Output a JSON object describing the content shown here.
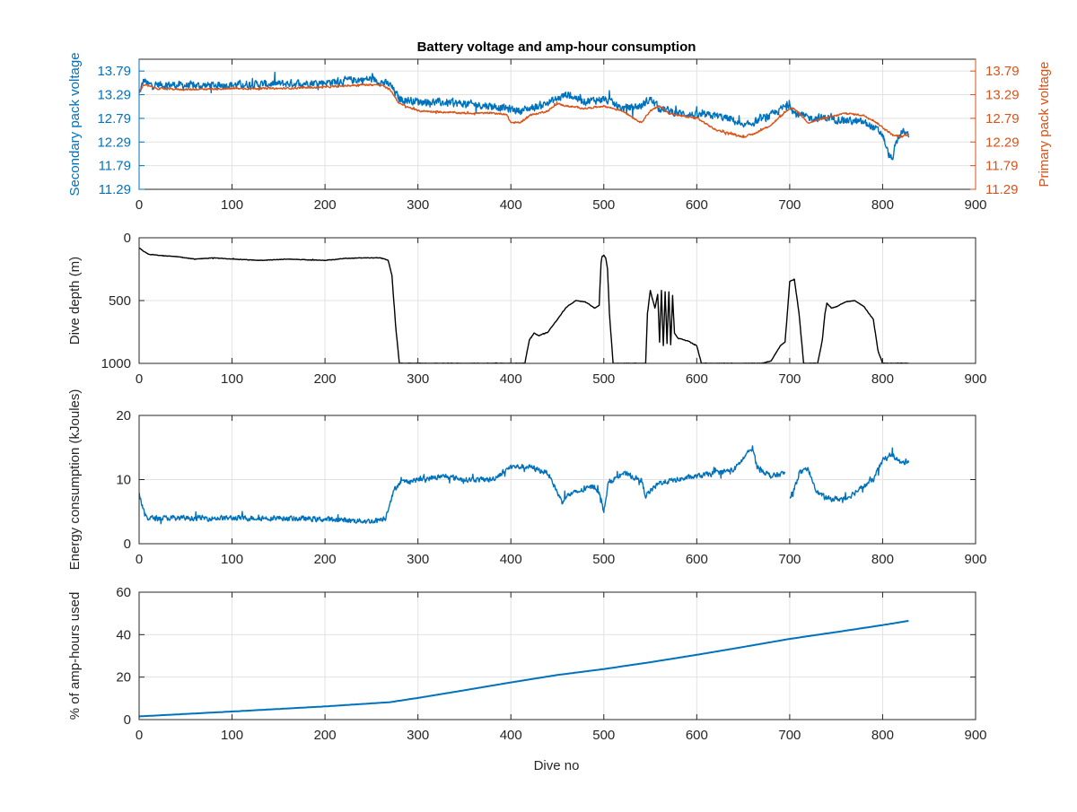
{
  "figure": {
    "title": "Battery voltage and amp-hour consumption",
    "xlabel": "Dive no"
  },
  "colors": {
    "blue": "#0072BD",
    "orange": "#D95319",
    "black": "#000000",
    "grid": "#e2e2e2",
    "axis": "#262626"
  },
  "chart_data": [
    {
      "type": "line",
      "title": "Battery voltage and amp-hour consumption",
      "xlabel": "",
      "ylabel_left": "Secondary pack voltage",
      "ylabel_right": "Primary pack voltage",
      "xlim": [
        0,
        900
      ],
      "x_ticks": [
        0,
        100,
        200,
        300,
        400,
        500,
        600,
        700,
        800,
        900
      ],
      "ylim": [
        11.29,
        14.04
      ],
      "y_ticks": [
        11.29,
        11.79,
        12.29,
        12.79,
        13.29,
        13.79
      ],
      "grid": true,
      "series": [
        {
          "name": "Secondary pack voltage",
          "axis": "left",
          "color": "#0072BD",
          "noise": 0.22,
          "x": [
            0,
            5,
            10,
            30,
            60,
            100,
            150,
            200,
            230,
            250,
            270,
            280,
            300,
            350,
            380,
            395,
            410,
            430,
            450,
            460,
            480,
            500,
            520,
            540,
            550,
            560,
            580,
            600,
            620,
            640,
            650,
            660,
            680,
            700,
            705,
            720,
            740,
            760,
            780,
            790,
            800,
            805,
            810,
            815,
            820,
            828
          ],
          "y": [
            13.3,
            13.6,
            13.5,
            13.5,
            13.48,
            13.5,
            13.52,
            13.55,
            13.6,
            13.62,
            13.5,
            13.2,
            13.15,
            13.1,
            13.05,
            13.0,
            12.95,
            13.05,
            13.2,
            13.3,
            13.15,
            13.2,
            13.0,
            13.05,
            13.2,
            13.0,
            12.9,
            12.85,
            12.85,
            12.75,
            12.6,
            12.7,
            12.85,
            13.1,
            12.9,
            12.8,
            12.8,
            12.75,
            12.7,
            12.6,
            12.45,
            12.1,
            11.9,
            12.3,
            12.5,
            12.45
          ]
        },
        {
          "name": "Primary pack voltage",
          "axis": "left",
          "color": "#D95319",
          "noise": 0.05,
          "x": [
            0,
            5,
            20,
            50,
            100,
            150,
            200,
            240,
            260,
            270,
            280,
            300,
            350,
            380,
            395,
            400,
            410,
            420,
            440,
            450,
            460,
            480,
            500,
            520,
            540,
            550,
            560,
            570,
            580,
            600,
            620,
            630,
            650,
            660,
            680,
            700,
            705,
            720,
            740,
            760,
            780,
            790,
            800,
            810,
            820,
            828
          ],
          "y": [
            13.35,
            13.5,
            13.42,
            13.4,
            13.42,
            13.42,
            13.45,
            13.5,
            13.5,
            13.4,
            13.1,
            12.95,
            12.9,
            12.9,
            12.88,
            12.7,
            12.7,
            12.85,
            12.95,
            13.1,
            13.05,
            13.0,
            13.05,
            12.95,
            12.7,
            12.95,
            13.05,
            12.9,
            12.85,
            12.8,
            12.55,
            12.5,
            12.4,
            12.45,
            12.65,
            13.0,
            13.0,
            12.7,
            12.8,
            12.9,
            12.85,
            12.75,
            12.6,
            12.45,
            12.4,
            12.45
          ]
        }
      ]
    },
    {
      "type": "line",
      "ylabel": "Dive depth (m)",
      "xlim": [
        0,
        900
      ],
      "x_ticks": [
        0,
        100,
        200,
        300,
        400,
        500,
        600,
        700,
        800,
        900
      ],
      "ylim": [
        0,
        1000
      ],
      "y_reversed": true,
      "y_ticks": [
        0,
        500,
        1000
      ],
      "grid": true,
      "series": [
        {
          "name": "",
          "color": "#000000",
          "noise": 6,
          "x": [
            0,
            2,
            5,
            10,
            20,
            40,
            60,
            80,
            100,
            130,
            160,
            200,
            220,
            240,
            260,
            268,
            272,
            276,
            280,
            300,
            350,
            400,
            415,
            420,
            425,
            430,
            440,
            450,
            460,
            470,
            480,
            490,
            495,
            497,
            498,
            500,
            502,
            504,
            506,
            510,
            515,
            520,
            540,
            545,
            547,
            550,
            555,
            558,
            560,
            562,
            564,
            566,
            568,
            570,
            572,
            574,
            576,
            580,
            590,
            600,
            605,
            608,
            612,
            650,
            670,
            680,
            690,
            695,
            698,
            700,
            702,
            705,
            710,
            715,
            720,
            730,
            735,
            738,
            740,
            745,
            750,
            760,
            770,
            780,
            790,
            795,
            800,
            810,
            828
          ],
          "y": [
            80,
            90,
            110,
            130,
            140,
            150,
            170,
            160,
            170,
            180,
            170,
            180,
            165,
            160,
            160,
            180,
            300,
            700,
            1000,
            1000,
            1000,
            1000,
            1000,
            810,
            760,
            780,
            750,
            650,
            550,
            500,
            510,
            560,
            540,
            200,
            150,
            140,
            160,
            250,
            600,
            1000,
            1000,
            1000,
            1000,
            1000,
            600,
            420,
            560,
            450,
            830,
            420,
            860,
            430,
            840,
            430,
            850,
            460,
            760,
            800,
            820,
            860,
            1000,
            1000,
            1000,
            1000,
            1000,
            980,
            860,
            830,
            550,
            350,
            340,
            330,
            600,
            1000,
            1000,
            1000,
            820,
            600,
            520,
            560,
            550,
            510,
            500,
            550,
            650,
            900,
            1000,
            1000,
            1000
          ]
        }
      ]
    },
    {
      "type": "line",
      "ylabel": "Energy consumption (kJoules)",
      "xlim": [
        0,
        900
      ],
      "x_ticks": [
        0,
        100,
        200,
        300,
        400,
        500,
        600,
        700,
        800,
        900
      ],
      "ylim": [
        0,
        20
      ],
      "y_ticks": [
        0,
        10,
        20
      ],
      "grid": true,
      "series": [
        {
          "name": "",
          "color": "#0072BD",
          "noise": 1.1,
          "segments": [
            {
              "x": [
                0,
                3,
                6,
                10,
                20,
                50,
                100,
                150,
                200,
                250,
                265,
                270,
                275,
                280,
                300,
                330,
                350,
                380,
                400,
                420,
                440,
                455,
                460,
                480,
                490,
                495,
                500,
                505,
                520,
                540,
                545,
                560,
                580,
                600,
                620,
                640,
                660,
                665,
                680,
                695
              ],
              "y": [
                8,
                6,
                4.5,
                4,
                4,
                4,
                4,
                4,
                3.8,
                3.5,
                4,
                6.5,
                8.5,
                9.5,
                10,
                10.5,
                10,
                10,
                12,
                12,
                11,
                6.5,
                7.5,
                8.5,
                9,
                8,
                5,
                9.5,
                11,
                10,
                7.5,
                9.5,
                10,
                10.5,
                11,
                11.5,
                15,
                12,
                10.5,
                11
              ]
            },
            {
              "x": [
                700,
                705,
                710,
                720,
                730,
                740,
                760,
                780,
                790,
                800,
                810,
                820,
                828
              ],
              "y": [
                7,
                8.5,
                11,
                11.5,
                8,
                7,
                7,
                9,
                10,
                13,
                14,
                12.5,
                13
              ]
            }
          ]
        }
      ]
    },
    {
      "type": "line",
      "ylabel": "% of amp-hours used",
      "xlim": [
        0,
        900
      ],
      "x_ticks": [
        0,
        100,
        200,
        300,
        400,
        500,
        600,
        700,
        800,
        900
      ],
      "ylim": [
        0,
        60
      ],
      "y_ticks": [
        0,
        20,
        40,
        60
      ],
      "grid": true,
      "series": [
        {
          "name": "",
          "color": "#0072BD",
          "noise": 0,
          "x": [
            0,
            100,
            200,
            270,
            300,
            350,
            400,
            450,
            500,
            550,
            600,
            650,
            700,
            750,
            800,
            828
          ],
          "y": [
            1.5,
            3.8,
            6.2,
            8.2,
            10.2,
            13.8,
            17.5,
            21,
            23.8,
            27,
            30.5,
            34.2,
            38,
            41.2,
            44.5,
            46.5
          ]
        }
      ]
    }
  ]
}
